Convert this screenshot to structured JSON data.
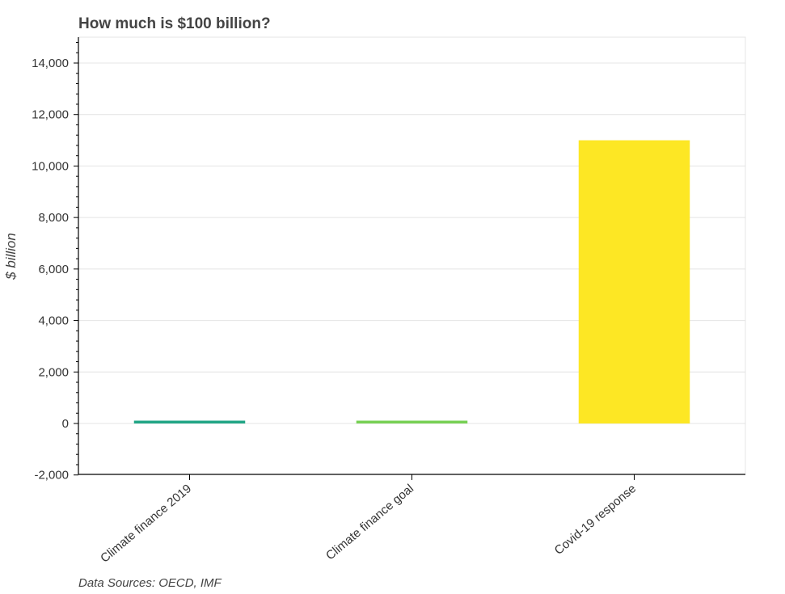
{
  "chart_data": {
    "type": "bar",
    "title": "How much is $100 billion?",
    "xlabel": "",
    "ylabel": "$ billion",
    "categories": [
      "Climate finance 2019",
      "Climate finance goal",
      "Covid-19 response"
    ],
    "values": [
      80,
      100,
      11000
    ],
    "colors": [
      "#21a585",
      "#77d054",
      "#fde724"
    ],
    "ylim": [
      -2000,
      15000
    ],
    "yticks": [
      -2000,
      0,
      2000,
      4000,
      6000,
      8000,
      10000,
      12000,
      14000
    ],
    "ytick_labels": [
      "-2,000",
      "0",
      "2,000",
      "4,000",
      "6,000",
      "8,000",
      "10,000",
      "12,000",
      "14,000"
    ],
    "grid": true,
    "source": "Data Sources: OECD, IMF"
  }
}
